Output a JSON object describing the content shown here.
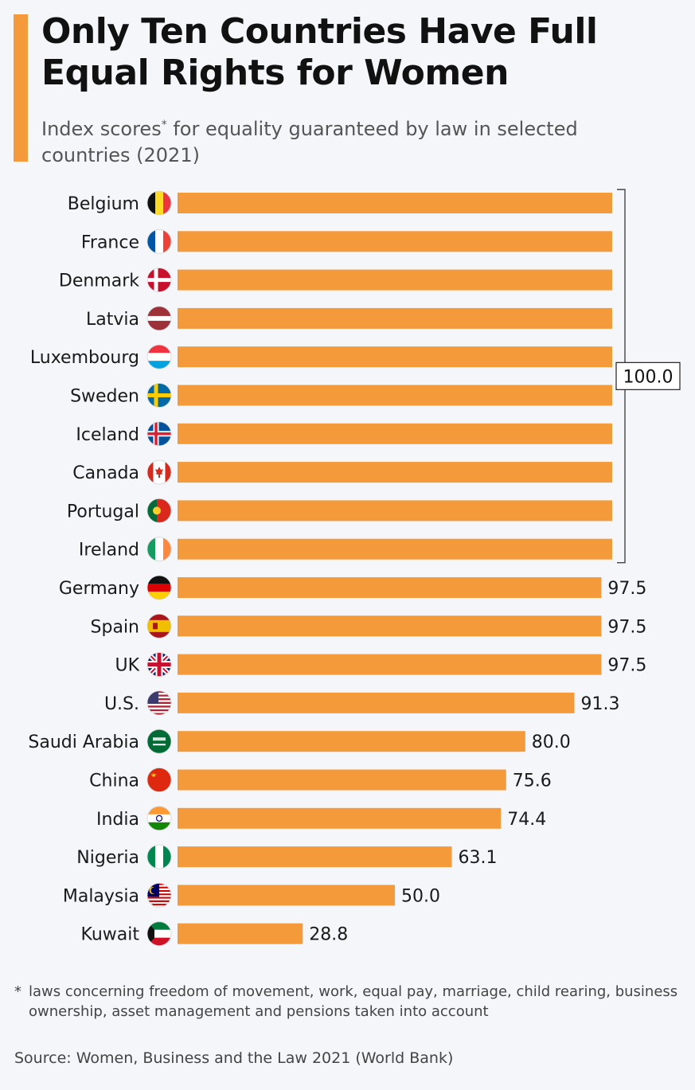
{
  "header": {
    "title": "Only Ten Countries Have Full Equal Rights for Women",
    "subtitle_before": "Index scores",
    "subtitle_star": "*",
    "subtitle_after": " for equality guaranteed by law in selected countries (2021)"
  },
  "chart_data": {
    "type": "bar",
    "orientation": "horizontal",
    "title": "Only Ten Countries Have Full Equal Rights for Women",
    "subtitle": "Index scores* for equality guaranteed by law in selected countries (2021)",
    "categories": [
      "Belgium",
      "France",
      "Denmark",
      "Latvia",
      "Luxembourg",
      "Sweden",
      "Iceland",
      "Canada",
      "Portugal",
      "Ireland",
      "Germany",
      "Spain",
      "UK",
      "U.S.",
      "Saudi Arabia",
      "China",
      "India",
      "Nigeria",
      "Malaysia",
      "Kuwait"
    ],
    "values": [
      100.0,
      100.0,
      100.0,
      100.0,
      100.0,
      100.0,
      100.0,
      100.0,
      100.0,
      100.0,
      97.5,
      97.5,
      97.5,
      91.3,
      80.0,
      75.6,
      74.4,
      63.1,
      50.0,
      28.8
    ],
    "value_labels": [
      "",
      "",
      "",
      "",
      "",
      "",
      "",
      "",
      "",
      "",
      "97.5",
      "97.5",
      "97.5",
      "91.3",
      "80.0",
      "75.6",
      "74.4",
      "63.1",
      "50.0",
      "28.8"
    ],
    "group_label": {
      "text": "100.0",
      "covers": [
        "Belgium",
        "France",
        "Denmark",
        "Latvia",
        "Luxembourg",
        "Sweden",
        "Iceland",
        "Canada",
        "Portugal",
        "Ireland"
      ]
    },
    "xlim": [
      0,
      100
    ],
    "bar_color": "#f49a3a",
    "flags": [
      "flag-belgium-icon",
      "flag-france-icon",
      "flag-denmark-icon",
      "flag-latvia-icon",
      "flag-luxembourg-icon",
      "flag-sweden-icon",
      "flag-iceland-icon",
      "flag-canada-icon",
      "flag-portugal-icon",
      "flag-ireland-icon",
      "flag-germany-icon",
      "flag-spain-icon",
      "flag-uk-icon",
      "flag-us-icon",
      "flag-saudi-arabia-icon",
      "flag-china-icon",
      "flag-india-icon",
      "flag-nigeria-icon",
      "flag-malaysia-icon",
      "flag-kuwait-icon"
    ]
  },
  "footer": {
    "footnote_star": "*",
    "footnote": "laws concerning freedom of movement, work, equal pay, marriage, child rearing, business ownership, asset management and pensions taken into account",
    "source": "Source: Women, Business and the Law 2021 (World Bank)"
  }
}
